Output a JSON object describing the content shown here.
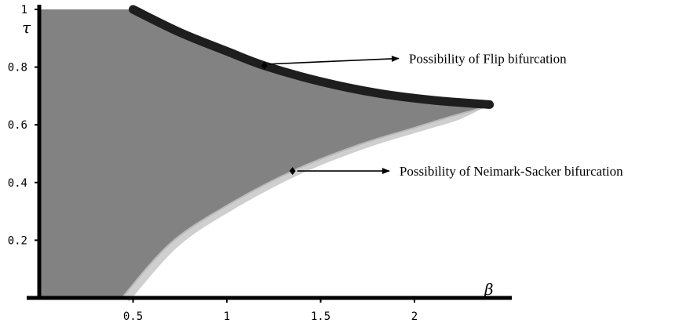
{
  "chart_data": {
    "type": "area",
    "title": "",
    "xlabel": "β",
    "ylabel": "τ",
    "xlim": [
      0,
      2.55
    ],
    "ylim": [
      0,
      1
    ],
    "x_ticks": [
      {
        "value": 0.5,
        "label": "0.5"
      },
      {
        "value": 1,
        "label": "1"
      },
      {
        "value": 1.5,
        "label": "1.5"
      },
      {
        "value": 2,
        "label": "2"
      }
    ],
    "y_ticks": [
      {
        "value": 0.2,
        "label": "0.2"
      },
      {
        "value": 0.4,
        "label": "0.4"
      },
      {
        "value": 0.6,
        "label": "0.6"
      },
      {
        "value": 0.8,
        "label": "0.8"
      },
      {
        "value": 1,
        "label": "1"
      }
    ],
    "grid": false,
    "colors": {
      "region_fill": "#828282",
      "ns_band": "#cfcfcf",
      "flip_curve": "#1e1e1e",
      "axis": "#000000"
    },
    "series": [
      {
        "name": "Flip bifurcation boundary",
        "points": [
          [
            0.5,
            1.0
          ],
          [
            0.75,
            0.92
          ],
          [
            1.0,
            0.855
          ],
          [
            1.2,
            0.805
          ],
          [
            1.5,
            0.75
          ],
          [
            1.8,
            0.71
          ],
          [
            2.1,
            0.685
          ],
          [
            2.4,
            0.67
          ]
        ]
      },
      {
        "name": "Neimark-Sacker bifurcation boundary",
        "points": [
          [
            0.44,
            0.0
          ],
          [
            0.7,
            0.19
          ],
          [
            1.0,
            0.32
          ],
          [
            1.35,
            0.44
          ],
          [
            1.7,
            0.53
          ],
          [
            2.0,
            0.59
          ],
          [
            2.2,
            0.63
          ],
          [
            2.4,
            0.665
          ]
        ]
      }
    ],
    "annotations": [
      {
        "text": "Possibility of Flip bifurcation",
        "point": [
          1.2,
          0.805
        ],
        "label_at": [
          1.92,
          0.83
        ]
      },
      {
        "text": "Possibility of Neimark-Sacker bifurcation",
        "point": [
          1.35,
          0.44
        ],
        "label_at": [
          1.87,
          0.44
        ]
      }
    ]
  }
}
